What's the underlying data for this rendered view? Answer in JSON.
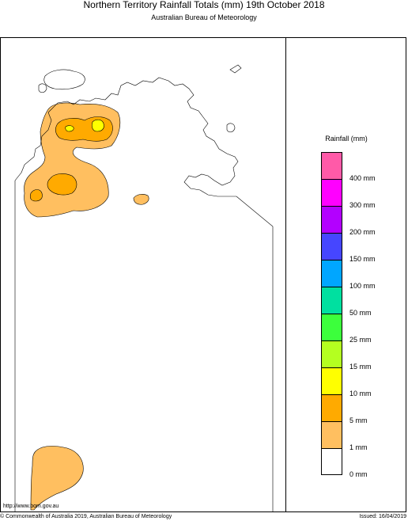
{
  "header": {
    "title": "Northern Territory Rainfall Totals (mm) 19th October 2018",
    "subtitle": "Australian Bureau of Meteorology"
  },
  "legend": {
    "title": "Rainfall (mm)",
    "bins": [
      {
        "color": "#ff5aa8"
      },
      {
        "color": "#ff00ff"
      },
      {
        "color": "#b300ff"
      },
      {
        "color": "#4646ff"
      },
      {
        "color": "#00a6ff"
      },
      {
        "color": "#00e0a0"
      },
      {
        "color": "#3cff3c"
      },
      {
        "color": "#b4ff20"
      },
      {
        "color": "#ffff00"
      },
      {
        "color": "#ffaa00"
      },
      {
        "color": "#ffbf60"
      },
      {
        "color": "#ffffff"
      }
    ],
    "labels": [
      "400 mm",
      "300 mm",
      "200 mm",
      "150 mm",
      "100 mm",
      "50 mm",
      "25 mm",
      "15 mm",
      "10 mm",
      "5 mm",
      "1 mm",
      "0 mm"
    ]
  },
  "footer": {
    "url": "http://www.bom.gov.au",
    "copyright": "© Commonwealth of Australia 2019, Australian Bureau of Meteorology",
    "issued": "Issued: 16/04/2019"
  }
}
